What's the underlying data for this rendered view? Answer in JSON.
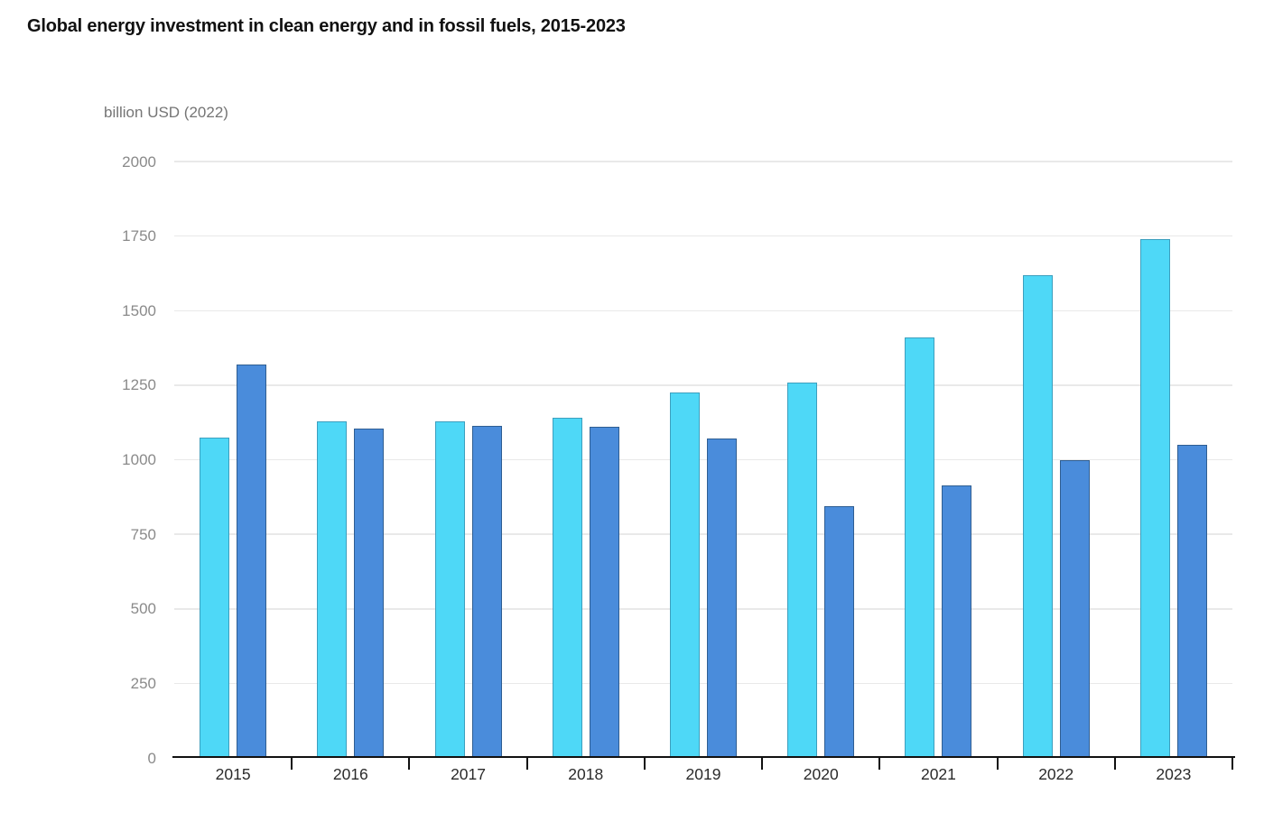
{
  "page": {
    "title": "Global energy investment in clean energy and in fossil fuels, 2015-2023"
  },
  "chart_data": {
    "type": "bar",
    "title": "Global energy investment in clean energy and in fossil fuels, 2015-2023",
    "unit_label": "billion USD (2022)",
    "categories": [
      "2015",
      "2016",
      "2017",
      "2018",
      "2019",
      "2020",
      "2021",
      "2022",
      "2023"
    ],
    "series": [
      {
        "name": "Clean energy",
        "color": "#4ED8F7",
        "border_color": "#3C9FBE",
        "values": [
          1075,
          1130,
          1130,
          1140,
          1225,
          1260,
          1410,
          1620,
          1740
        ]
      },
      {
        "name": "Fossil fuels",
        "color": "#4A8CDB",
        "border_color": "#2F5E92",
        "values": [
          1320,
          1105,
          1115,
          1110,
          1070,
          845,
          915,
          1000,
          1050
        ]
      }
    ],
    "ylim": [
      0,
      2000
    ],
    "yticks": [
      0,
      250,
      500,
      750,
      1000,
      1250,
      1500,
      1750,
      2000
    ],
    "xlabel": "",
    "ylabel": "billion USD (2022)",
    "grid": "horizontal",
    "legend_position": "none",
    "colors": {
      "grid_color": "#e9e9e9",
      "axis_color": "#111111",
      "y_tick_label_color": "#8a8a8a",
      "x_tick_label_color": "#2b2b2b",
      "title_color": "#111111",
      "background": "#ffffff"
    }
  }
}
